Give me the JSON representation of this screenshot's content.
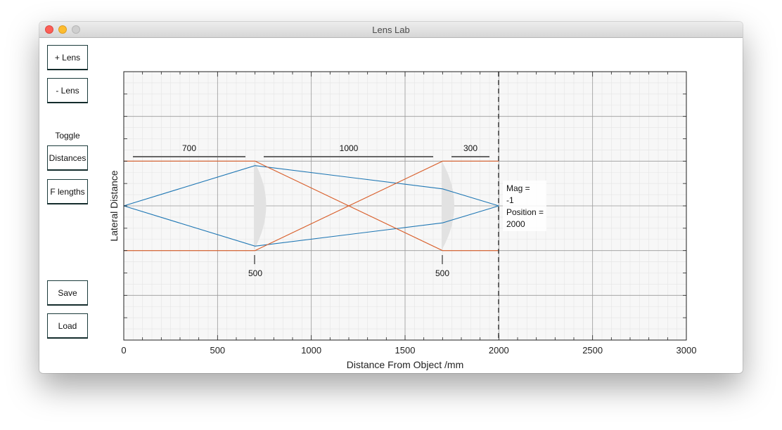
{
  "window": {
    "title": "Lens Lab"
  },
  "sidebar": {
    "add_lens": "+ Lens",
    "remove_lens": "- Lens",
    "toggle_label": "Toggle",
    "distances": "Distances",
    "f_lengths": "F lengths",
    "save": "Save",
    "load": "Load"
  },
  "plot": {
    "xlabel": "Distance From Object /mm",
    "ylabel": "Lateral Distance",
    "x_ticks": [
      "0",
      "500",
      "1000",
      "1500",
      "2000",
      "2500",
      "3000"
    ],
    "distances": [
      "700",
      "1000",
      "300"
    ],
    "focal_lengths": [
      "500",
      "500"
    ],
    "info": {
      "mag_label": "Mag =",
      "mag_value": "-1",
      "pos_label": "Position =",
      "pos_value": "2000"
    }
  },
  "colors": {
    "ray_blue": "#1f77b4",
    "ray_orange": "#d95f2b",
    "grid": "#e4e4e4"
  },
  "chart_data": {
    "type": "line",
    "xlabel": "Distance From Object /mm",
    "ylabel": "Lateral Distance",
    "xlim": [
      0,
      3000
    ],
    "ylim": [
      -3,
      3
    ],
    "lenses": [
      {
        "position": 700,
        "focal_length": 500
      },
      {
        "position": 1700,
        "focal_length": 500
      }
    ],
    "image_position": 2000,
    "magnification": -1,
    "series": [
      {
        "x": [
          0,
          700,
          1700,
          2000
        ],
        "y": [
          0,
          0.9,
          0.38,
          0
        ]
      },
      {
        "x": [
          0,
          700,
          1700,
          2000
        ],
        "y": [
          0,
          -0.9,
          -0.38,
          0
        ]
      },
      {
        "x": [
          0,
          700,
          1700,
          2000
        ],
        "y": [
          1,
          1,
          -1,
          -1
        ]
      },
      {
        "x": [
          0,
          700,
          1700,
          2000
        ],
        "y": [
          -1,
          -1,
          1,
          1
        ]
      }
    ]
  }
}
